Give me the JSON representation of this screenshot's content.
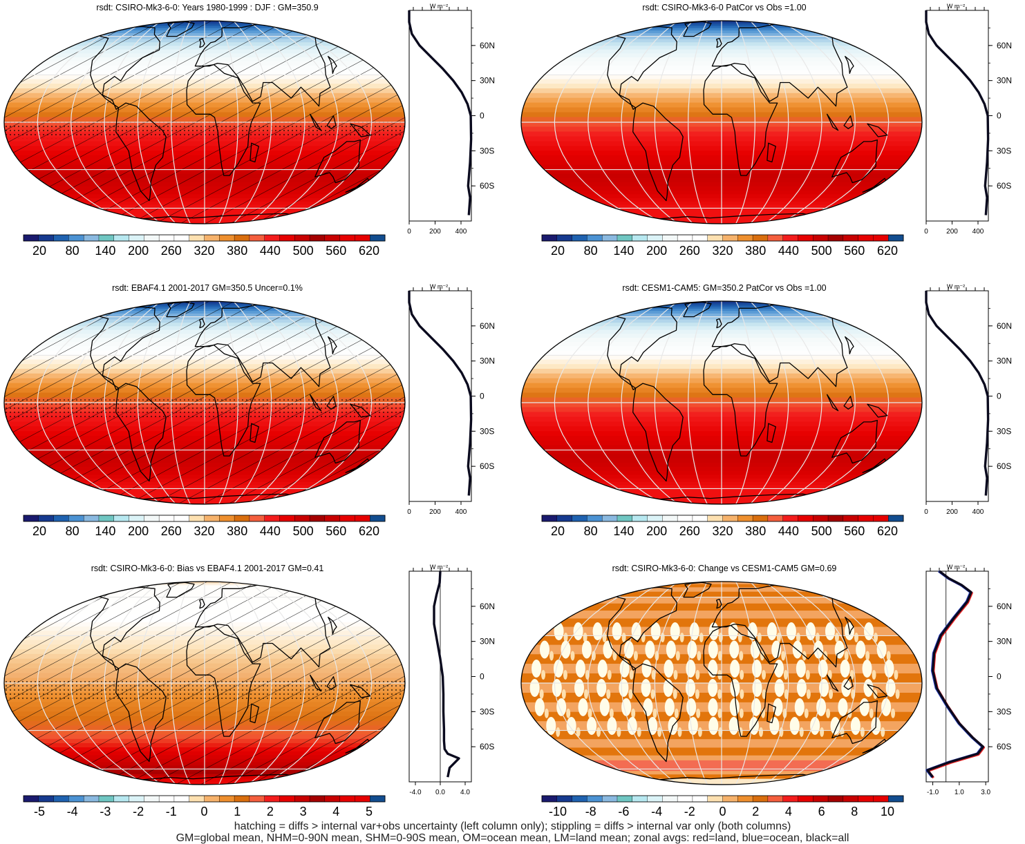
{
  "panels": [
    {
      "title": "rsdt: CSIRO-Mk3-6-0: Years 1980-1999 : DJF : GM=350.9",
      "field": "full",
      "hatch": true,
      "stipple": true,
      "colorbar": {
        "labels": [
          "20",
          "80",
          "140",
          "200",
          "260",
          "320",
          "380",
          "440",
          "500",
          "560",
          "620"
        ]
      },
      "profile": {
        "unit": "W m⁻²",
        "xlim": [
          0,
          480
        ],
        "xticks": [
          "0",
          "200",
          "400"
        ],
        "zero_line": false,
        "overlays": false
      }
    },
    {
      "title": "rsdt: CSIRO-Mk3-6-0 PatCor vs Obs =1.00",
      "field": "full",
      "hatch": false,
      "stipple": false,
      "colorbar": {
        "labels": [
          "20",
          "80",
          "140",
          "200",
          "260",
          "320",
          "380",
          "440",
          "500",
          "560",
          "620"
        ]
      },
      "profile": {
        "unit": "W m⁻²",
        "xlim": [
          0,
          480
        ],
        "xticks": [
          "0",
          "200",
          "400"
        ],
        "zero_line": false,
        "overlays": false
      }
    },
    {
      "title": "rsdt: EBAF4.1 2001-2017 GM=350.5 Uncer=0.1%",
      "field": "full",
      "hatch": true,
      "stipple": true,
      "colorbar": {
        "labels": [
          "20",
          "80",
          "140",
          "200",
          "260",
          "320",
          "380",
          "440",
          "500",
          "560",
          "620"
        ]
      },
      "profile": {
        "unit": "W m⁻²",
        "xlim": [
          0,
          480
        ],
        "xticks": [
          "0",
          "200",
          "400"
        ],
        "zero_line": false,
        "overlays": false
      }
    },
    {
      "title": "rsdt: CESM1-CAM5: GM=350.2 PatCor vs Obs =1.00",
      "field": "full",
      "hatch": false,
      "stipple": false,
      "colorbar": {
        "labels": [
          "20",
          "80",
          "140",
          "200",
          "260",
          "320",
          "380",
          "440",
          "500",
          "560",
          "620"
        ]
      },
      "profile": {
        "unit": "W m⁻²",
        "xlim": [
          0,
          480
        ],
        "xticks": [
          "0",
          "200",
          "400"
        ],
        "zero_line": false,
        "overlays": false
      }
    },
    {
      "title": "rsdt: CSIRO-Mk3-6-0: Bias vs EBAF4.1 2001-2017 GM=0.41",
      "field": "bias",
      "hatch": true,
      "stipple": true,
      "colorbar": {
        "labels": [
          "-5",
          "-4",
          "-3",
          "-2",
          "-1",
          "0",
          "1",
          "2",
          "3",
          "4",
          "5"
        ]
      },
      "profile": {
        "unit": "W m⁻²",
        "xlim": [
          -5,
          5
        ],
        "xticks": [
          "-4.0",
          "0.0",
          "4.0"
        ],
        "zero_line": true,
        "overlays": false
      }
    },
    {
      "title": "rsdt: CSIRO-Mk3-6-0: Change vs CESM1-CAM5 GM=0.69",
      "field": "change",
      "hatch": false,
      "stipple": false,
      "colorbar": {
        "labels": [
          "-10",
          "-8",
          "-6",
          "-4",
          "-2",
          "0",
          "2",
          "4",
          "6",
          "8",
          "10"
        ]
      },
      "profile": {
        "unit": "W m⁻²",
        "xlim": [
          -1.5,
          3.2
        ],
        "xticks": [
          "-1.0",
          "1.0",
          "3.0"
        ],
        "zero_line": true,
        "overlays": true
      }
    }
  ],
  "lat_ticks": [
    "60N",
    "30N",
    "0",
    "30S",
    "60S"
  ],
  "palette": [
    "#1a1a6e",
    "#163a8f",
    "#1f62b0",
    "#4b92d3",
    "#8ab9e0",
    "#6fc6c2",
    "#b7e8f0",
    "#dbf3f7",
    "#f3f8f8",
    "#ffffff",
    "#ffffff",
    "#fde0b0",
    "#f6b26b",
    "#ee8f2e",
    "#d96e0e",
    "#f45e3d",
    "#f31c1c",
    "#e60000",
    "#c80000",
    "#a50000",
    "#c80000",
    "#e60000",
    "#e60000",
    "#124d8f"
  ],
  "footer": {
    "line1": "hatching = diffs > internal var+obs uncertainty (left column only); stippling = diffs > internal var only (both columns)",
    "line2": "GM=global mean, NHM=0-90N mean, SHM=0-90S mean, OM=ocean mean, LM=land mean; zonal avgs: red=land, blue=ocean, black=all"
  },
  "chart_data": [
    {
      "type": "line",
      "title": "rsdt: CSIRO-Mk3-6-0: Years 1980-1999 : DJF : GM=350.9",
      "xlabel": "W m⁻²",
      "xlim": [
        0,
        480
      ],
      "ylim": [
        -90,
        90
      ],
      "series": [
        {
          "x": [
            0,
            0,
            20,
            80,
            170,
            260,
            340,
            405,
            450,
            475,
            478,
            470,
            455,
            470,
            460
          ],
          "y": [
            90,
            80,
            70,
            60,
            50,
            40,
            30,
            20,
            10,
            0,
            -20,
            -40,
            -60,
            -70,
            -85
          ]
        }
      ]
    },
    {
      "type": "line",
      "title": "rsdt: CSIRO-Mk3-6-0 PatCor vs Obs =1.00",
      "xlabel": "W m⁻²",
      "xlim": [
        0,
        480
      ],
      "ylim": [
        -90,
        90
      ],
      "series": [
        {
          "x": [
            0,
            0,
            20,
            80,
            170,
            260,
            340,
            405,
            450,
            475,
            478,
            470,
            455,
            470,
            460
          ],
          "y": [
            90,
            80,
            70,
            60,
            50,
            40,
            30,
            20,
            10,
            0,
            -20,
            -40,
            -60,
            -70,
            -85
          ]
        }
      ]
    },
    {
      "type": "line",
      "title": "rsdt: EBAF4.1 2001-2017 GM=350.5 Uncer=0.1%",
      "xlabel": "W m⁻²",
      "xlim": [
        0,
        480
      ],
      "ylim": [
        -90,
        90
      ],
      "series": [
        {
          "x": [
            0,
            0,
            20,
            80,
            170,
            260,
            340,
            405,
            450,
            475,
            478,
            470,
            455,
            470,
            460
          ],
          "y": [
            90,
            80,
            70,
            60,
            50,
            40,
            30,
            20,
            10,
            0,
            -20,
            -40,
            -60,
            -70,
            -85
          ]
        }
      ]
    },
    {
      "type": "line",
      "title": "rsdt: CESM1-CAM5: GM=350.2 PatCor vs Obs =1.00",
      "xlabel": "W m⁻²",
      "xlim": [
        0,
        480
      ],
      "ylim": [
        -90,
        90
      ],
      "series": [
        {
          "x": [
            0,
            0,
            20,
            80,
            170,
            260,
            340,
            405,
            450,
            475,
            478,
            470,
            455,
            470,
            460
          ],
          "y": [
            90,
            80,
            70,
            60,
            50,
            40,
            30,
            20,
            10,
            0,
            -20,
            -40,
            -60,
            -70,
            -85
          ]
        }
      ]
    },
    {
      "type": "line",
      "title": "rsdt: CSIRO-Mk3-6-0: Bias vs EBAF4.1 2001-2017 GM=0.41",
      "xlabel": "W m⁻²",
      "xlim": [
        -5,
        5
      ],
      "ylim": [
        -90,
        90
      ],
      "series": [
        {
          "x": [
            0,
            -0.1,
            -0.6,
            -1.0,
            -1.0,
            -0.5,
            0.0,
            0.4,
            0.5,
            0.5,
            0.6,
            0.6,
            0.7,
            1.2,
            3.0,
            1.5,
            1.2
          ],
          "y": [
            90,
            80,
            70,
            60,
            45,
            30,
            15,
            0,
            -15,
            -30,
            -45,
            -55,
            -62,
            -66,
            -70,
            -78,
            -86
          ]
        }
      ]
    },
    {
      "type": "line",
      "title": "rsdt: CSIRO-Mk3-6-0: Change vs CESM1-CAM5 GM=0.69",
      "xlabel": "W m⁻²",
      "xlim": [
        -1.5,
        3.2
      ],
      "ylim": [
        -90,
        90
      ],
      "series": [
        {
          "x": [
            -0.5,
            0.2,
            1.2,
            1.9,
            1.6,
            0.6,
            -0.4,
            -0.9,
            -1.0,
            -0.7,
            0.1,
            1.0,
            2.0,
            2.8,
            2.4,
            0.3,
            -1.4,
            -1.0
          ],
          "y": [
            90,
            84,
            78,
            72,
            64,
            50,
            35,
            20,
            5,
            -10,
            -25,
            -40,
            -52,
            -60,
            -66,
            -73,
            -80,
            -86
          ]
        }
      ]
    }
  ]
}
